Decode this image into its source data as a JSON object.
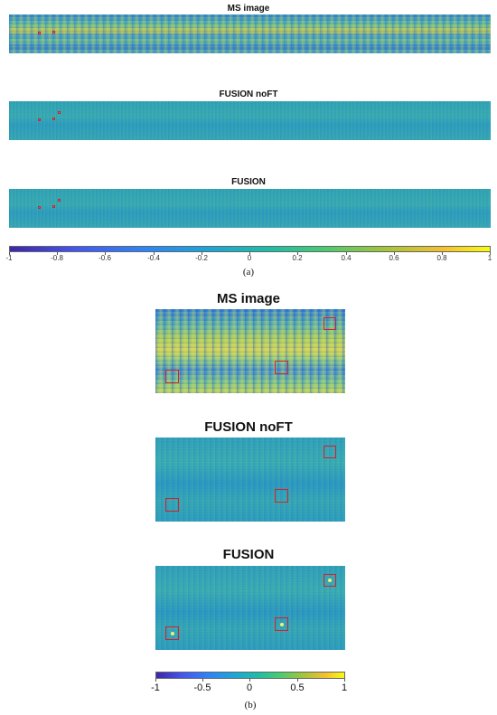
{
  "panel_a": {
    "titles": {
      "ms": "MS image",
      "fusion_noft": "FUSION noFT",
      "fusion": "FUSION"
    },
    "colorbar_ticks": [
      "-1",
      "-0.8",
      "-0.6",
      "-0.4",
      "-0.2",
      "0",
      "0.2",
      "0.4",
      "0.6",
      "0.8",
      "1"
    ],
    "label": "(a)"
  },
  "panel_b": {
    "titles": {
      "ms": "MS image",
      "fusion_noft": "FUSION noFT",
      "fusion": "FUSION"
    },
    "colorbar_ticks": [
      "-1",
      "-0.5",
      "0",
      "0.5",
      "1"
    ],
    "label": "(b)"
  },
  "colors": {
    "marker": "#d6202a",
    "colormap_low": "#3e26a8",
    "colormap_high": "#f9fb0e"
  }
}
